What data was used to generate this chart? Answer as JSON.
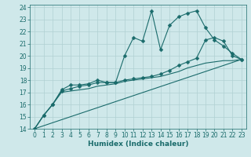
{
  "xlabel": "Humidex (Indice chaleur)",
  "xlim": [
    -0.5,
    23.5
  ],
  "ylim": [
    14,
    24.2
  ],
  "xticks": [
    0,
    1,
    2,
    3,
    4,
    5,
    6,
    7,
    8,
    9,
    10,
    11,
    12,
    13,
    14,
    15,
    16,
    17,
    18,
    19,
    20,
    21,
    22,
    23
  ],
  "yticks": [
    14,
    15,
    16,
    17,
    18,
    19,
    20,
    21,
    22,
    23,
    24
  ],
  "background_color": "#cfe8ea",
  "grid_color": "#b0d0d2",
  "line_color": "#1a6b6b",
  "series": [
    {
      "x": [
        0,
        1,
        2,
        3,
        4,
        5,
        6,
        7,
        8,
        9,
        10,
        11,
        12,
        13,
        14,
        15,
        16,
        17,
        18,
        19,
        20,
        21,
        22,
        23
      ],
      "y": [
        14.0,
        15.1,
        16.0,
        17.2,
        17.6,
        17.6,
        17.7,
        18.0,
        17.8,
        17.8,
        20.0,
        21.5,
        21.2,
        23.7,
        20.5,
        22.5,
        23.2,
        23.5,
        23.7,
        22.3,
        21.3,
        20.8,
        20.2,
        19.7
      ],
      "marker": "D",
      "markersize": 2.5,
      "linewidth": 0.8
    },
    {
      "x": [
        0,
        1,
        2,
        3,
        4,
        5,
        6,
        7,
        8,
        9,
        10,
        11,
        12,
        13,
        14,
        15,
        16,
        17,
        18,
        19,
        20,
        21,
        22,
        23
      ],
      "y": [
        14.0,
        15.1,
        16.0,
        17.1,
        17.3,
        17.5,
        17.6,
        17.8,
        17.8,
        17.8,
        18.0,
        18.1,
        18.2,
        18.3,
        18.5,
        18.8,
        19.2,
        19.5,
        19.8,
        21.3,
        21.5,
        21.2,
        20.0,
        19.7
      ],
      "marker": "D",
      "markersize": 2.5,
      "linewidth": 0.8
    },
    {
      "x": [
        0,
        1,
        2,
        3,
        4,
        5,
        6,
        7,
        8,
        9,
        10,
        11,
        12,
        13,
        14,
        15,
        16,
        17,
        18,
        19,
        20,
        21,
        22,
        23
      ],
      "y": [
        14.0,
        15.1,
        16.0,
        17.0,
        17.1,
        17.2,
        17.3,
        17.5,
        17.6,
        17.7,
        17.9,
        18.0,
        18.1,
        18.2,
        18.3,
        18.5,
        18.7,
        19.0,
        19.2,
        19.4,
        19.5,
        19.6,
        19.6,
        19.7
      ],
      "marker": null,
      "markersize": 0,
      "linewidth": 0.8
    },
    {
      "x": [
        0,
        23
      ],
      "y": [
        14.0,
        19.7
      ],
      "marker": null,
      "markersize": 0,
      "linewidth": 0.8
    }
  ]
}
